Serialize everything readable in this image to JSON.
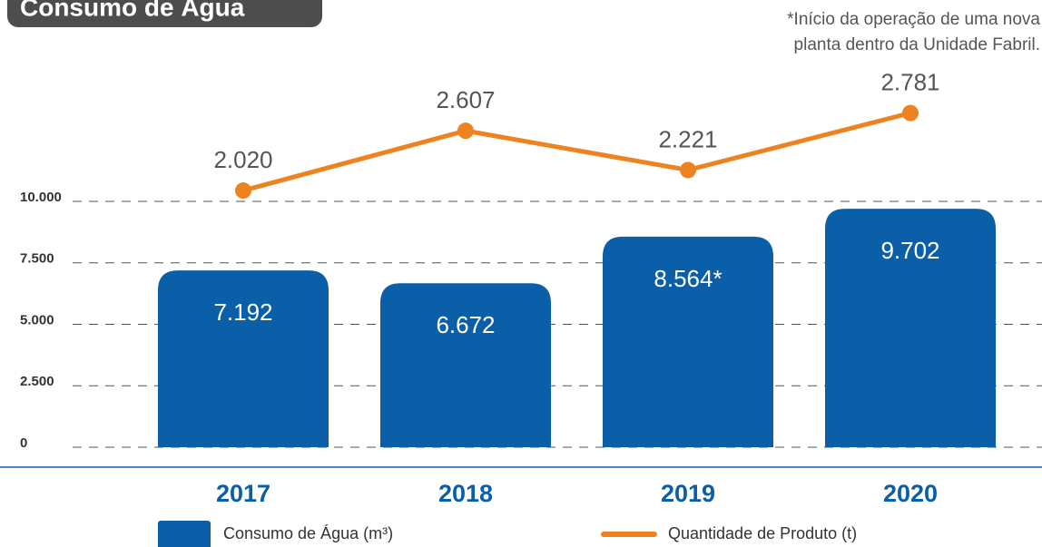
{
  "chart_data": {
    "type": "bar",
    "title": "Consumo de Água",
    "note": [
      "*Início da operação de uma nova",
      "planta dentro da Unidade Fabril."
    ],
    "categories": [
      "2017",
      "2018",
      "2019",
      "2020"
    ],
    "series": [
      {
        "name": "Consumo de Água (m³)",
        "type": "bar",
        "color": "#0b5fa8",
        "values": [
          7192,
          6672,
          8564,
          9702
        ],
        "value_labels": [
          "7.192",
          "6.672",
          "8.564*",
          "9.702"
        ]
      },
      {
        "name": "Quantidade de Produto (t)",
        "type": "line",
        "axis": "y2",
        "color": "#ef8220",
        "values": [
          2020,
          2607,
          2221,
          2781
        ],
        "value_labels": [
          "2.020",
          "2.607",
          "2.221",
          "2.781"
        ]
      }
    ],
    "ylim": [
      0,
      10000
    ],
    "yticks": [
      0,
      {
        "value": 2500,
        "label": "2.500"
      },
      {
        "value": 5000,
        "label": "5.000"
      },
      {
        "value": 7500,
        "label": "7.500"
      },
      {
        "value": 10000,
        "label": "10.000"
      }
    ],
    "y2lim": [
      -500,
      3000
    ],
    "grid": true
  }
}
